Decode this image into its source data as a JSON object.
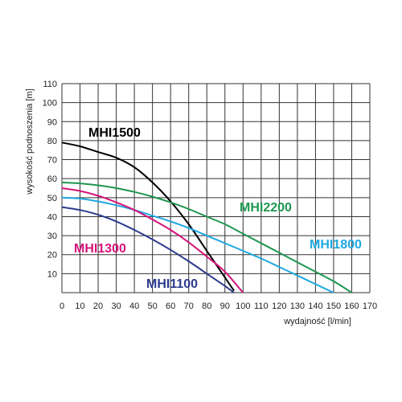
{
  "chart_data": {
    "type": "line",
    "xlabel": "wydajność [l/min]",
    "ylabel": "wysokość podnoszenia [m]",
    "xlim": [
      0,
      170
    ],
    "ylim": [
      0,
      110
    ],
    "xticks": [
      0,
      10,
      20,
      30,
      40,
      50,
      60,
      70,
      80,
      90,
      100,
      110,
      120,
      130,
      140,
      150,
      160,
      170
    ],
    "yticks": [
      10,
      20,
      30,
      40,
      50,
      60,
      70,
      80,
      90,
      100,
      110
    ],
    "grid": true,
    "series": [
      {
        "name": "MHI1500",
        "color": "#000000",
        "x": [
          0,
          10,
          20,
          30,
          40,
          50,
          60,
          70,
          80,
          85,
          90,
          95
        ],
        "y": [
          79,
          77,
          74,
          71,
          66,
          58,
          48,
          36,
          22,
          15,
          8,
          1
        ]
      },
      {
        "name": "MHI2200",
        "color": "#1e9650",
        "x": [
          0,
          10,
          20,
          30,
          40,
          50,
          60,
          70,
          80,
          90,
          100,
          110,
          120,
          130,
          140,
          150,
          160
        ],
        "y": [
          58,
          57.5,
          56.5,
          55,
          53,
          50.5,
          47.5,
          44,
          40,
          36,
          31,
          26,
          21,
          16,
          11,
          6,
          0
        ]
      },
      {
        "name": "MHI1800",
        "color": "#1ea8e0",
        "x": [
          0,
          10,
          20,
          30,
          40,
          50,
          60,
          70,
          80,
          90,
          100,
          110,
          120,
          130,
          140,
          150
        ],
        "y": [
          50,
          49.5,
          48,
          46,
          43.5,
          40.5,
          37.5,
          34,
          30,
          26,
          22,
          18,
          13.5,
          9,
          4.5,
          0
        ]
      },
      {
        "name": "MHI1300",
        "color": "#d4147a",
        "x": [
          0,
          10,
          20,
          30,
          40,
          50,
          60,
          70,
          80,
          90,
          100
        ],
        "y": [
          55,
          53.5,
          51,
          47.5,
          43.5,
          38.5,
          33,
          26.5,
          19,
          11,
          0
        ]
      },
      {
        "name": "MHI1100",
        "color": "#2b3a8c",
        "x": [
          0,
          10,
          20,
          30,
          40,
          50,
          60,
          70,
          80,
          90,
          95
        ],
        "y": [
          45,
          43.5,
          41,
          37.5,
          33,
          28,
          22.5,
          16.5,
          10,
          3.5,
          0
        ]
      }
    ]
  }
}
